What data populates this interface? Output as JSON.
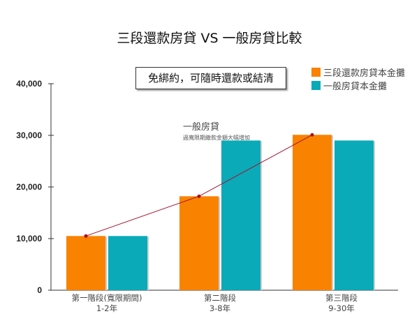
{
  "chart_data": {
    "type": "bar",
    "title": "三段還款房貸 VS 一般房貸比較",
    "categories": [
      {
        "label": "第一階段(寬限期間)",
        "sublabel": "1-2年"
      },
      {
        "label": "第二階段",
        "sublabel": "3-8年"
      },
      {
        "label": "第三階段",
        "sublabel": "9-30年"
      }
    ],
    "series": [
      {
        "name": "三段還款房貸本金攤",
        "color": "#F98200",
        "values": [
          10500,
          18200,
          30100
        ]
      },
      {
        "name": "一般房貸本金攤",
        "color": "#0AAAB8",
        "values": [
          10500,
          29000,
          29000
        ]
      }
    ],
    "trend_line": {
      "color": "#A8102A",
      "follows_series": 0
    },
    "ylim": [
      0,
      40000
    ],
    "yticks": [
      "0",
      "10,000",
      "20,000",
      "30,000",
      "40,000"
    ],
    "ytick_values": [
      0,
      10000,
      20000,
      30000,
      40000
    ],
    "grid": false,
    "legend": "top-right",
    "annotations": {
      "note": "免綁約，可隨時還款或結清",
      "general_title": "一般房貸",
      "general_sub": "過寬限期繳款金額大幅增加"
    }
  }
}
